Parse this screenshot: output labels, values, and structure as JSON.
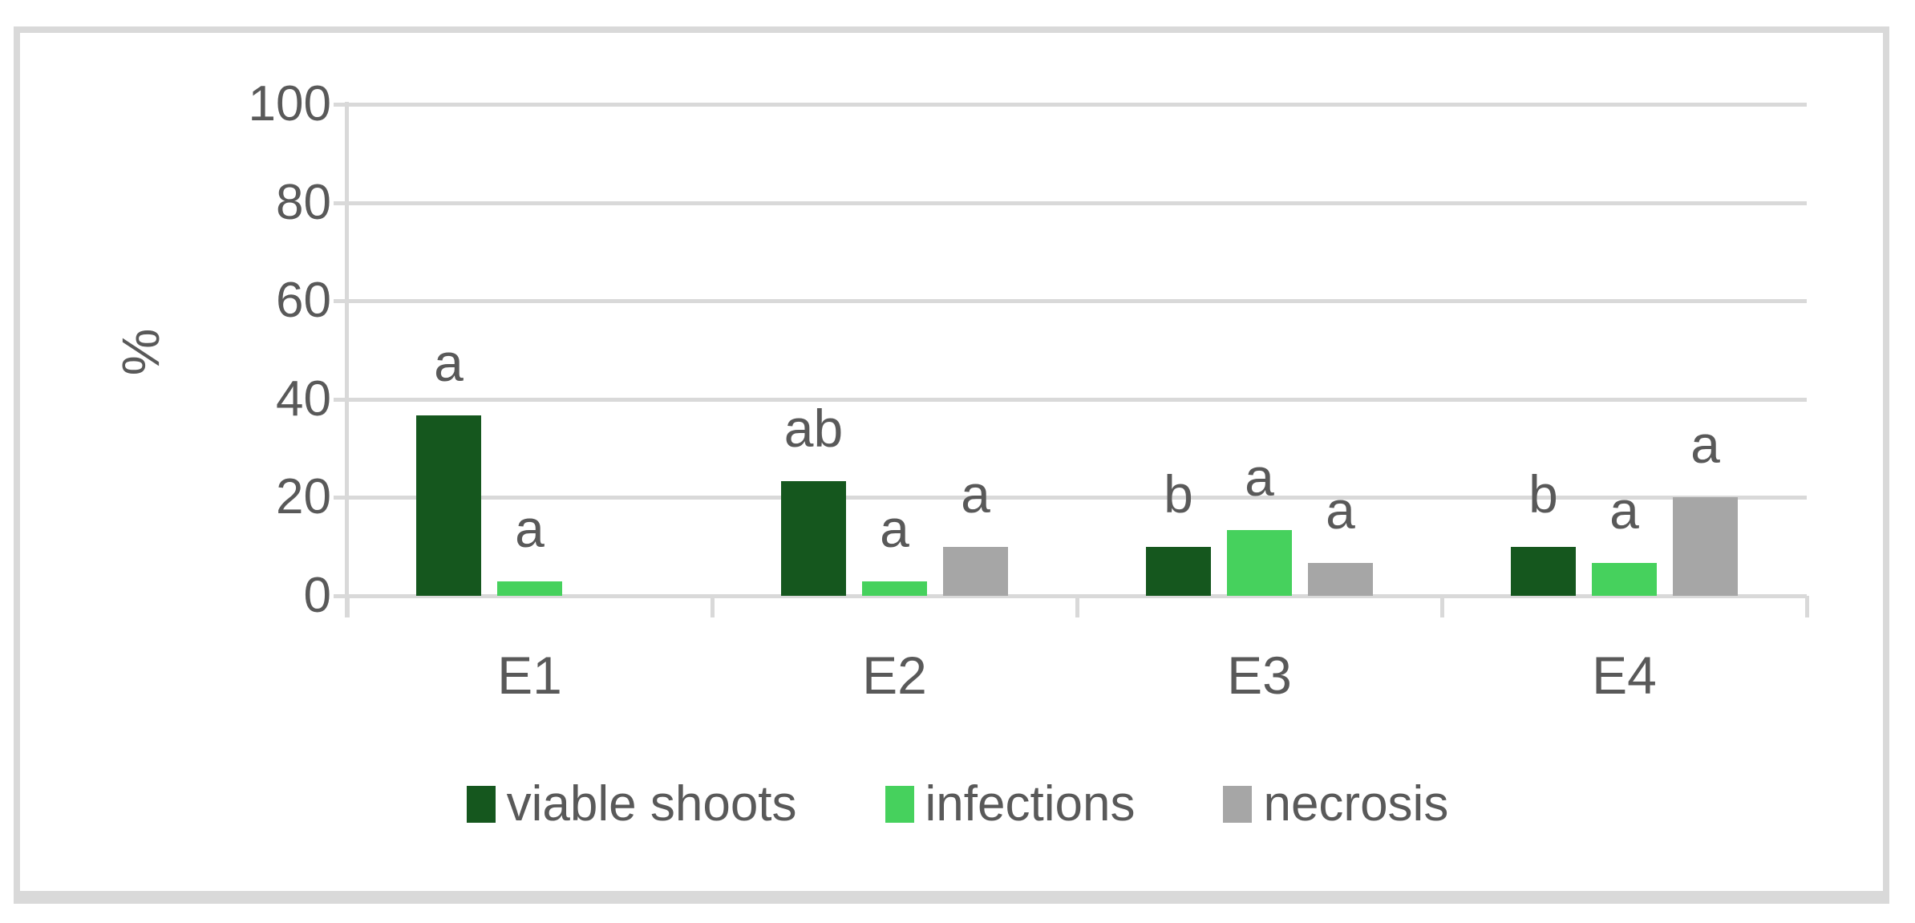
{
  "chart_data": {
    "type": "bar",
    "title": "",
    "xlabel": "",
    "ylabel": "%",
    "categories": [
      "E1",
      "E2",
      "E3",
      "E4"
    ],
    "series": [
      {
        "name": "viable shoots",
        "color": "#15571E",
        "values": [
          36.7,
          23.3,
          10,
          10
        ],
        "letters": [
          "a",
          "ab",
          "b",
          "b"
        ]
      },
      {
        "name": "infections",
        "color": "#46D15D",
        "values": [
          3,
          3,
          13.3,
          6.7
        ],
        "letters": [
          "a",
          "a",
          "a",
          "a"
        ]
      },
      {
        "name": "necrosis",
        "color": "#A6A6A6",
        "values": [
          0,
          10,
          6.7,
          20
        ],
        "letters": [
          "",
          "a",
          "a",
          "a"
        ]
      }
    ],
    "yticks": [
      0,
      20,
      40,
      60,
      80,
      100
    ],
    "ylim": [
      0,
      100
    ],
    "grid": "horizontal",
    "legend_position": "bottom"
  },
  "colors": {
    "background": "#FFFFFF",
    "frame_border": "#D9D9D9",
    "gridline": "#D9D9D9",
    "axis_line": "#D9D9D9",
    "text": "#595959"
  }
}
